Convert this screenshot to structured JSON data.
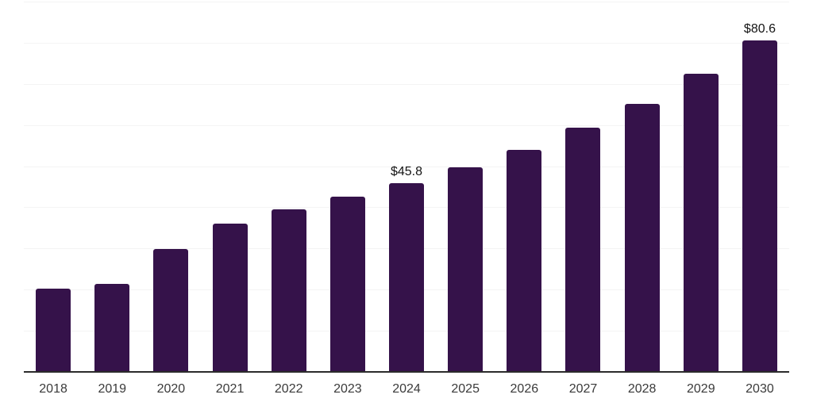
{
  "chart_data": {
    "type": "bar",
    "title": "",
    "xlabel": "",
    "ylabel": "",
    "categories": [
      "2018",
      "2019",
      "2020",
      "2021",
      "2022",
      "2023",
      "2024",
      "2025",
      "2026",
      "2027",
      "2028",
      "2029",
      "2030"
    ],
    "values": [
      20.2,
      21.3,
      29.9,
      36.1,
      39.5,
      42.6,
      45.8,
      49.7,
      53.9,
      59.4,
      65.2,
      72.4,
      80.6
    ],
    "data_labels": {
      "2024": "$45.8",
      "2030": "$80.6"
    },
    "ylim": [
      0,
      90
    ],
    "gridline_step": 10,
    "grid": true,
    "legend": false,
    "colors": {
      "bar": "#35124a",
      "gridline": "#f4f4f4",
      "axis_line": "#2b2b2b",
      "data_label": "#141414",
      "tick_label": "#3a3a3a",
      "background": "#ffffff"
    }
  }
}
